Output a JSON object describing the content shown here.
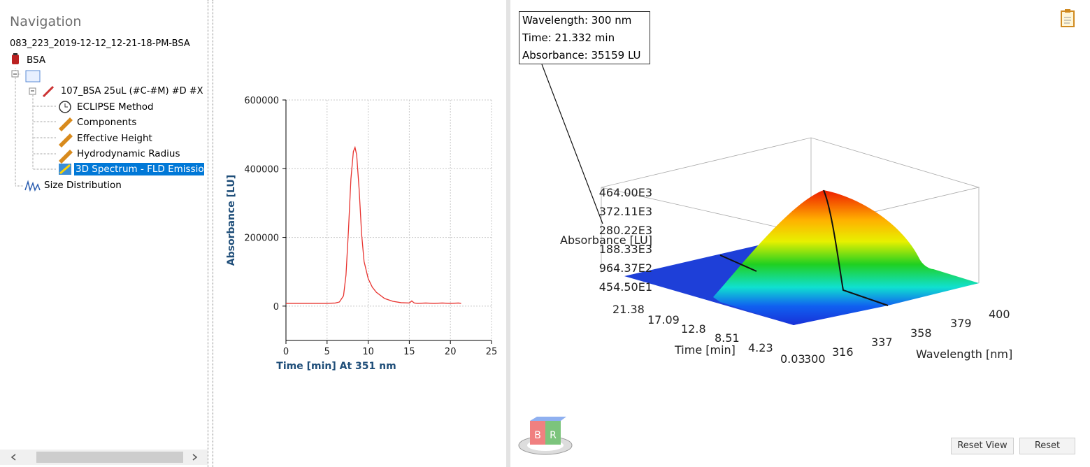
{
  "navigation": {
    "title": "Navigation",
    "items": [
      "083_223_2019-12-12_12-21-18-PM-BSA",
      "BSA",
      "107_BSA 25uL (#C-#M) #D #X",
      "ECLIPSE Method",
      "Components",
      "Effective Height",
      "Hydrodynamic Radius",
      "3D Spectrum - FLD Emissio",
      "Size Distribution"
    ]
  },
  "chart_data": {
    "type": "line",
    "xlabel": "Time [min] At 351 nm",
    "ylabel": "Absorbance [LU]",
    "xlim": [
      0,
      25
    ],
    "ylim": [
      -100000,
      600000
    ],
    "xticks": [
      0,
      5,
      10,
      15,
      20,
      25
    ],
    "yticks": [
      0,
      200000,
      400000,
      600000
    ],
    "grid": true,
    "series": [
      {
        "name": "Absorbance",
        "color": "#e8332f",
        "x": [
          0,
          1,
          2,
          3,
          4,
          5,
          6,
          6.5,
          7,
          7.3,
          7.6,
          7.9,
          8.2,
          8.4,
          8.6,
          8.9,
          9.2,
          9.5,
          10,
          10.5,
          11,
          12,
          13,
          14,
          15,
          15.3,
          15.6,
          16,
          17,
          18,
          19,
          20,
          21,
          21.3
        ],
        "values": [
          8000,
          8000,
          8000,
          8000,
          8000,
          8000,
          9000,
          12000,
          30000,
          90000,
          220000,
          370000,
          450000,
          462000,
          440000,
          340000,
          210000,
          130000,
          80000,
          55000,
          40000,
          22000,
          14000,
          10000,
          9000,
          15000,
          9000,
          8000,
          9000,
          8000,
          9000,
          8000,
          9000,
          8000
        ]
      }
    ]
  },
  "spectrum3d": {
    "tooltip": [
      "Wavelength: 300 nm",
      "Time: 21.332 min",
      "Absorbance: 35159 LU"
    ],
    "zlabel": "Absorbance [LU]",
    "zticks": [
      "464.00E3",
      "372.11E3",
      "280.22E3",
      "188.33E3",
      "964.37E2",
      "454.50E1"
    ],
    "tlabel": "Time [min]",
    "tticks": [
      "21.38",
      "17.09",
      "12.8",
      "8.51",
      "4.23",
      "0.03"
    ],
    "wlabel": "Wavelength [nm]",
    "wticks": [
      "300",
      "316",
      "337",
      "358",
      "379",
      "400"
    ],
    "cube": [
      "B",
      "R"
    ],
    "buttons": [
      "Reset View",
      "Reset"
    ]
  }
}
